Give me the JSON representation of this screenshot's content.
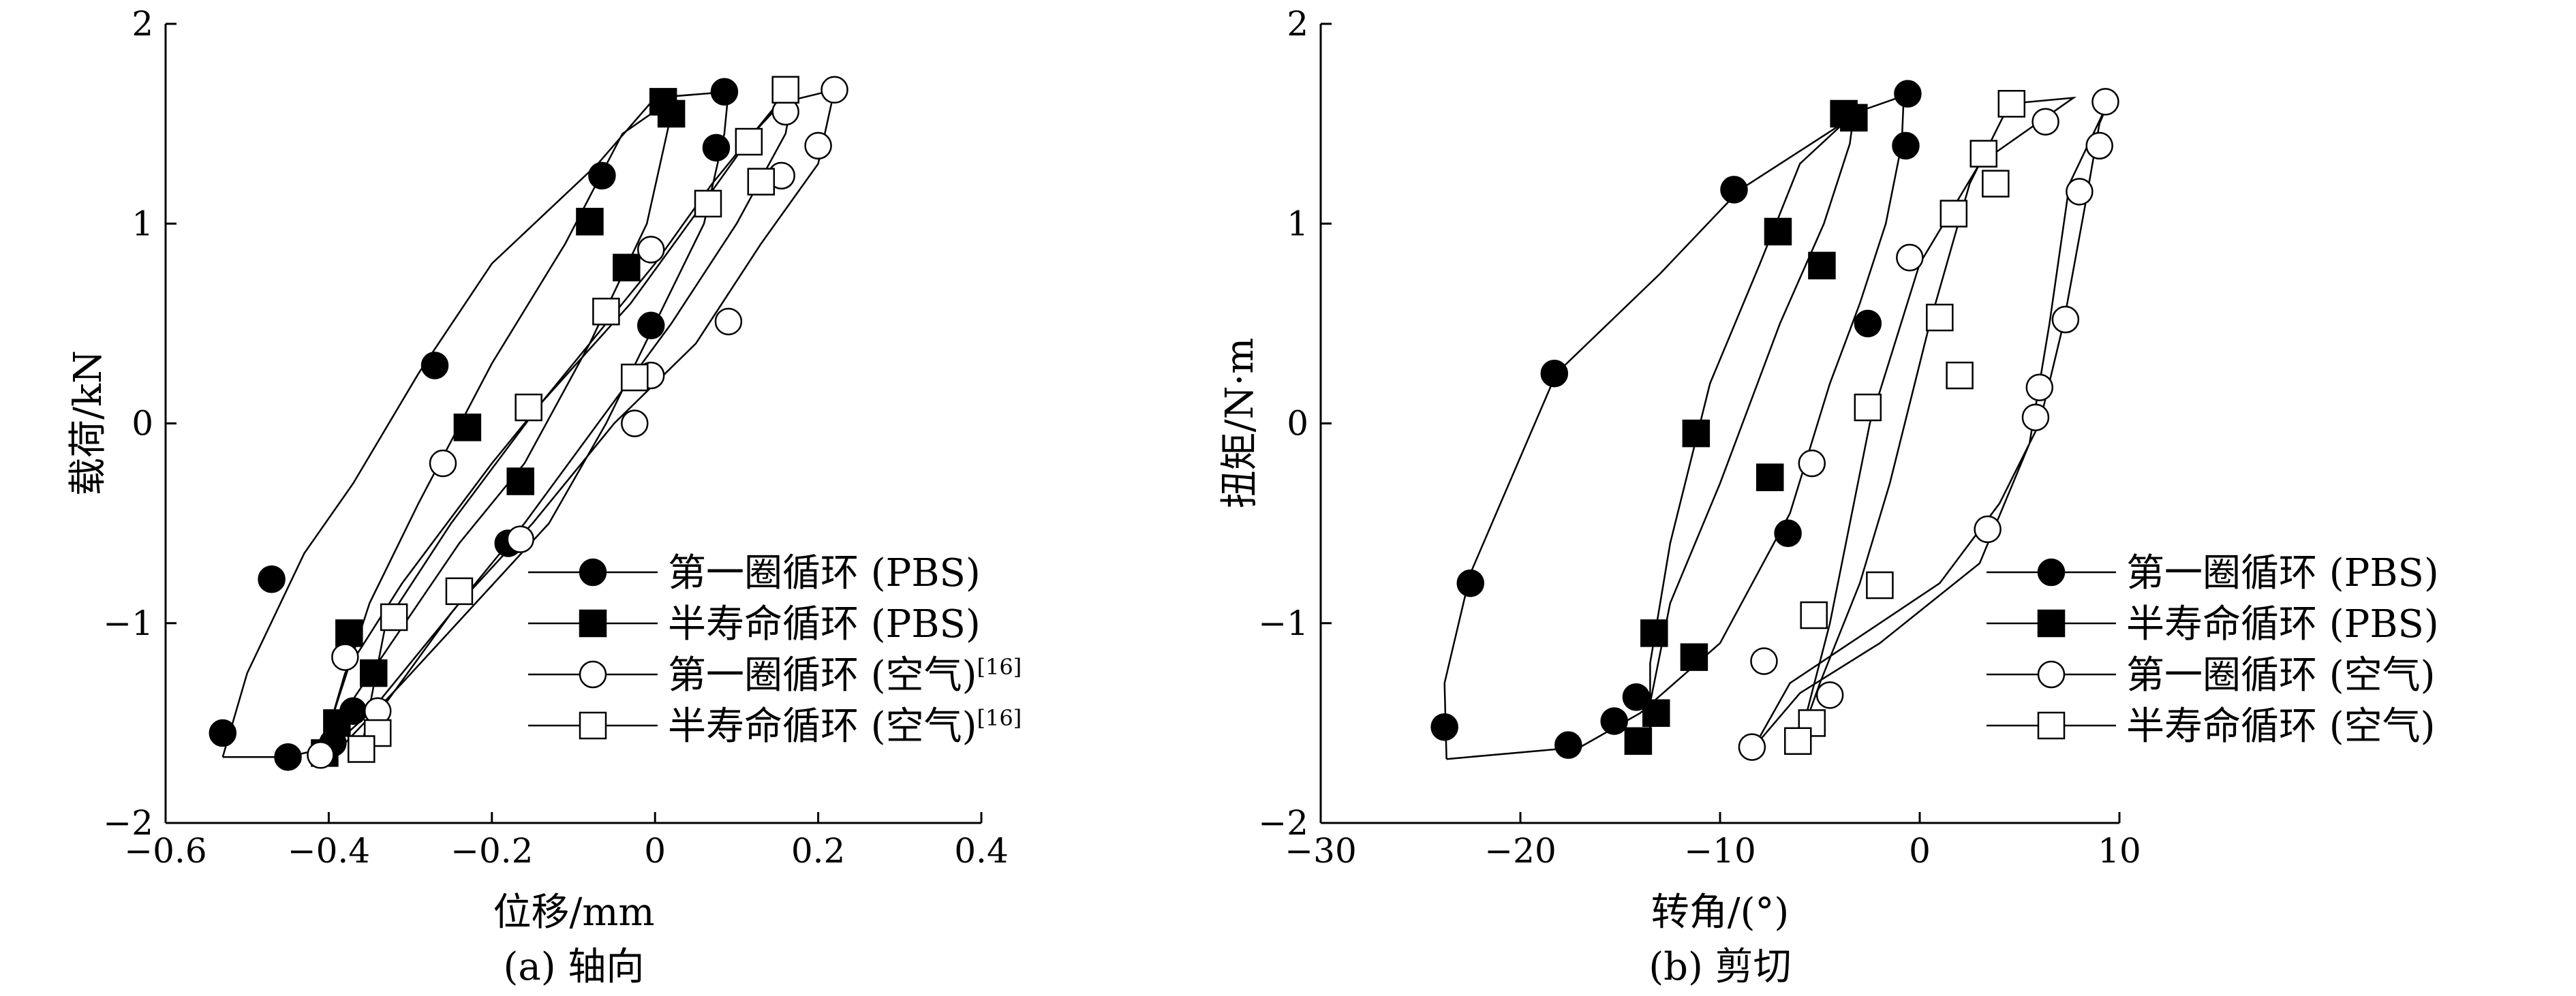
{
  "chart_data": [
    {
      "type": "line",
      "caption": "(a) 轴向",
      "xlabel": "位移/mm",
      "ylabel": "载荷/kN",
      "xlim": [
        -0.6,
        0.4
      ],
      "ylim": [
        -2,
        2
      ],
      "xticks": [
        -0.6,
        -0.4,
        -0.2,
        0,
        0.2,
        0.4
      ],
      "xtick_labels": [
        "−0.6",
        "−0.4",
        "−0.2",
        "0",
        "0.2",
        "0.4"
      ],
      "yticks": [
        -2,
        -1,
        0,
        1,
        2
      ],
      "ytick_labels": [
        "−2",
        "−1",
        "0",
        "1",
        "2"
      ],
      "legend_position": "bottom-right",
      "series": [
        {
          "name": "第一圈循环 (PBS)",
          "marker": "circle-filled",
          "line": [
            [
              -0.53,
              -1.67
            ],
            [
              -0.45,
              -1.67
            ],
            [
              -0.38,
              -1.6
            ],
            [
              -0.31,
              -1.3
            ],
            [
              -0.22,
              -0.9
            ],
            [
              -0.13,
              -0.5
            ],
            [
              -0.06,
              0
            ],
            [
              0.0,
              0.5
            ],
            [
              0.06,
              1.0
            ],
            [
              0.085,
              1.45
            ],
            [
              0.09,
              1.66
            ],
            [
              0.0,
              1.63
            ],
            [
              -0.07,
              1.3
            ],
            [
              -0.2,
              0.8
            ],
            [
              -0.29,
              0.25
            ],
            [
              -0.37,
              -0.3
            ],
            [
              -0.43,
              -0.65
            ],
            [
              -0.5,
              -1.25
            ],
            [
              -0.53,
              -1.67
            ]
          ],
          "points": [
            [
              0.085,
              1.66
            ],
            [
              0.075,
              1.38
            ],
            [
              -0.065,
              1.24
            ],
            [
              -0.27,
              0.29
            ],
            [
              -0.47,
              -0.78
            ],
            [
              -0.53,
              -1.55
            ],
            [
              -0.45,
              -1.67
            ],
            [
              -0.395,
              -1.6
            ],
            [
              -0.37,
              -1.44
            ],
            [
              -0.18,
              -0.6
            ],
            [
              -0.005,
              0.49
            ]
          ]
        },
        {
          "name": "半寿命循环 (PBS)",
          "marker": "square-filled",
          "line": [
            [
              -0.41,
              -1.66
            ],
            [
              -0.39,
              -1.5
            ],
            [
              -0.34,
              -1.2
            ],
            [
              -0.24,
              -0.6
            ],
            [
              -0.16,
              -0.2
            ],
            [
              -0.08,
              0.4
            ],
            [
              -0.01,
              1.0
            ],
            [
              0.02,
              1.55
            ],
            [
              0.02,
              1.62
            ],
            [
              -0.04,
              1.45
            ],
            [
              -0.11,
              0.9
            ],
            [
              -0.2,
              0.3
            ],
            [
              -0.29,
              -0.4
            ],
            [
              -0.35,
              -0.9
            ],
            [
              -0.39,
              -1.4
            ],
            [
              -0.41,
              -1.66
            ]
          ],
          "points": [
            [
              0.01,
              1.61
            ],
            [
              0.02,
              1.55
            ],
            [
              -0.08,
              1.01
            ],
            [
              -0.035,
              0.78
            ],
            [
              -0.23,
              -0.02
            ],
            [
              -0.165,
              -0.29
            ],
            [
              -0.375,
              -1.05
            ],
            [
              -0.345,
              -1.25
            ],
            [
              -0.39,
              -1.5
            ],
            [
              -0.405,
              -1.65
            ]
          ]
        },
        {
          "name": "第一圈循环 (空气)",
          "legend_suffix": "[16]",
          "marker": "circle-open",
          "line": [
            [
              -0.41,
              -1.67
            ],
            [
              -0.35,
              -1.45
            ],
            [
              -0.24,
              -0.9
            ],
            [
              -0.15,
              -0.5
            ],
            [
              -0.05,
              0
            ],
            [
              0.05,
              0.4
            ],
            [
              0.13,
              0.9
            ],
            [
              0.2,
              1.3
            ],
            [
              0.22,
              1.67
            ],
            [
              0.15,
              1.6
            ],
            [
              0.07,
              1.2
            ],
            [
              0.0,
              0.8
            ],
            [
              -0.1,
              0.3
            ],
            [
              -0.2,
              -0.2
            ],
            [
              -0.31,
              -0.8
            ],
            [
              -0.38,
              -1.25
            ],
            [
              -0.41,
              -1.67
            ]
          ],
          "points": [
            [
              0.22,
              1.67
            ],
            [
              0.16,
              1.56
            ],
            [
              0.2,
              1.39
            ],
            [
              0.155,
              1.24
            ],
            [
              -0.005,
              0.87
            ],
            [
              0.09,
              0.51
            ],
            [
              -0.005,
              0.24
            ],
            [
              -0.025,
              0.0
            ],
            [
              -0.26,
              -0.2
            ],
            [
              -0.165,
              -0.58
            ],
            [
              -0.38,
              -1.17
            ],
            [
              -0.34,
              -1.44
            ],
            [
              -0.41,
              -1.66
            ]
          ]
        },
        {
          "name": "半寿命循环 (空气)",
          "legend_suffix": "[16]",
          "marker": "square-open",
          "line": [
            [
              -0.36,
              -1.63
            ],
            [
              -0.33,
              -1.4
            ],
            [
              -0.25,
              -0.95
            ],
            [
              -0.16,
              -0.5
            ],
            [
              -0.07,
              0
            ],
            [
              0.02,
              0.5
            ],
            [
              0.1,
              1.0
            ],
            [
              0.16,
              1.45
            ],
            [
              0.17,
              1.67
            ],
            [
              0.12,
              1.45
            ],
            [
              0.05,
              1.05
            ],
            [
              -0.03,
              0.6
            ],
            [
              -0.14,
              0.1
            ],
            [
              -0.25,
              -0.5
            ],
            [
              -0.33,
              -1.0
            ],
            [
              -0.36,
              -1.63
            ]
          ],
          "points": [
            [
              0.16,
              1.67
            ],
            [
              0.115,
              1.41
            ],
            [
              0.13,
              1.21
            ],
            [
              0.065,
              1.1
            ],
            [
              -0.06,
              0.56
            ],
            [
              -0.025,
              0.23
            ],
            [
              -0.155,
              0.08
            ],
            [
              -0.32,
              -0.97
            ],
            [
              -0.24,
              -0.84
            ],
            [
              -0.34,
              -1.55
            ],
            [
              -0.36,
              -1.63
            ]
          ]
        }
      ]
    },
    {
      "type": "line",
      "caption": "(b) 剪切",
      "xlabel": "转角/(°)",
      "ylabel": "扭矩/N·m",
      "xlim": [
        -30,
        10
      ],
      "ylim": [
        -2,
        2
      ],
      "xticks": [
        -30,
        -20,
        -10,
        0,
        10
      ],
      "xtick_labels": [
        "−30",
        "−20",
        "−10",
        "0",
        "10"
      ],
      "yticks": [
        -2,
        -1,
        0,
        1,
        2
      ],
      "ytick_labels": [
        "−2",
        "−1",
        "0",
        "1",
        "2"
      ],
      "legend_position": "bottom-right",
      "series": [
        {
          "name": "第一圈循环 (PBS)",
          "marker": "circle-filled",
          "line": [
            [
              -23.7,
              -1.68
            ],
            [
              -17,
              -1.62
            ],
            [
              -14,
              -1.45
            ],
            [
              -10,
              -1.1
            ],
            [
              -6.5,
              -0.45
            ],
            [
              -4.5,
              0.2
            ],
            [
              -3.0,
              0.6
            ],
            [
              -1.7,
              1.0
            ],
            [
              -0.9,
              1.4
            ],
            [
              -0.8,
              1.64
            ],
            [
              -2.8,
              1.57
            ],
            [
              -9,
              1.17
            ],
            [
              -13,
              0.75
            ],
            [
              -18.2,
              0.25
            ],
            [
              -22.5,
              -0.75
            ],
            [
              -23.8,
              -1.3
            ],
            [
              -23.7,
              -1.68
            ]
          ],
          "points": [
            [
              -0.6,
              1.65
            ],
            [
              -0.7,
              1.39
            ],
            [
              -2.6,
              0.5
            ],
            [
              -9.3,
              1.17
            ],
            [
              -18.3,
              0.25
            ],
            [
              -22.5,
              -0.8
            ],
            [
              -23.8,
              -1.52
            ],
            [
              -17.6,
              -1.61
            ],
            [
              -15.3,
              -1.49
            ],
            [
              -14.2,
              -1.37
            ],
            [
              -6.6,
              -0.55
            ]
          ]
        },
        {
          "name": "半寿命循环 (PBS)",
          "marker": "square-filled",
          "line": [
            [
              -13.5,
              -1.6
            ],
            [
              -13.5,
              -1.4
            ],
            [
              -12.5,
              -0.9
            ],
            [
              -10,
              -0.3
            ],
            [
              -7,
              0.5
            ],
            [
              -4.8,
              1.0
            ],
            [
              -3.5,
              1.4
            ],
            [
              -3.3,
              1.55
            ],
            [
              -6,
              1.3
            ],
            [
              -8,
              0.8
            ],
            [
              -10.5,
              0.2
            ],
            [
              -12.5,
              -0.6
            ],
            [
              -13.5,
              -1.2
            ],
            [
              -13.5,
              -1.6
            ]
          ],
          "points": [
            [
              -3.8,
              1.55
            ],
            [
              -3.3,
              1.53
            ],
            [
              -7.1,
              0.96
            ],
            [
              -4.9,
              0.79
            ],
            [
              -11.2,
              -0.05
            ],
            [
              -7.5,
              -0.27
            ],
            [
              -13.3,
              -1.05
            ],
            [
              -11.3,
              -1.17
            ],
            [
              -13.2,
              -1.45
            ],
            [
              -14.1,
              -1.59
            ]
          ]
        },
        {
          "name": "第一圈循环 (空气)",
          "marker": "circle-open",
          "line": [
            [
              -8.3,
              -1.62
            ],
            [
              -6.5,
              -1.3
            ],
            [
              -2,
              -1.0
            ],
            [
              1,
              -0.8
            ],
            [
              4,
              -0.4
            ],
            [
              6,
              0
            ],
            [
              7.2,
              0.5
            ],
            [
              8.3,
              1.1
            ],
            [
              9,
              1.5
            ],
            [
              9.5,
              1.62
            ],
            [
              7.5,
              1.2
            ],
            [
              6.5,
              0.5
            ],
            [
              5.5,
              -0.1
            ],
            [
              3,
              -0.7
            ],
            [
              -2,
              -1.1
            ],
            [
              -6,
              -1.35
            ],
            [
              -8.3,
              -1.62
            ]
          ],
          "points": [
            [
              9.3,
              1.61
            ],
            [
              9.0,
              1.39
            ],
            [
              6.3,
              1.51
            ],
            [
              8.0,
              1.16
            ],
            [
              7.3,
              0.52
            ],
            [
              6.0,
              0.18
            ],
            [
              5.8,
              0.03
            ],
            [
              3.4,
              -0.53
            ],
            [
              -8.4,
              -1.62
            ],
            [
              -7.8,
              -1.19
            ],
            [
              -4.5,
              -1.36
            ],
            [
              -5.4,
              -0.2
            ],
            [
              -0.5,
              0.83
            ]
          ]
        },
        {
          "name": "半寿命循环 (空气)",
          "marker": "square-open",
          "line": [
            [
              -6,
              -1.58
            ],
            [
              -4.5,
              -1.0
            ],
            [
              -2.5,
              0
            ],
            [
              0,
              0.8
            ],
            [
              3,
              1.3
            ],
            [
              7.7,
              1.63
            ],
            [
              4.5,
              1.6
            ],
            [
              2.5,
              1.2
            ],
            [
              0.5,
              0.5
            ],
            [
              -1.5,
              -0.3
            ],
            [
              -3,
              -0.8
            ],
            [
              -5,
              -1.3
            ],
            [
              -6,
              -1.58
            ]
          ],
          "points": [
            [
              4.6,
              1.6
            ],
            [
              3.2,
              1.35
            ],
            [
              3.8,
              1.2
            ],
            [
              1.7,
              1.05
            ],
            [
              1.0,
              0.53
            ],
            [
              2.0,
              0.24
            ],
            [
              -2.6,
              0.08
            ],
            [
              -2.0,
              -0.81
            ],
            [
              -5.3,
              -0.96
            ],
            [
              -5.4,
              -1.5
            ],
            [
              -6.1,
              -1.59
            ]
          ]
        }
      ]
    }
  ]
}
